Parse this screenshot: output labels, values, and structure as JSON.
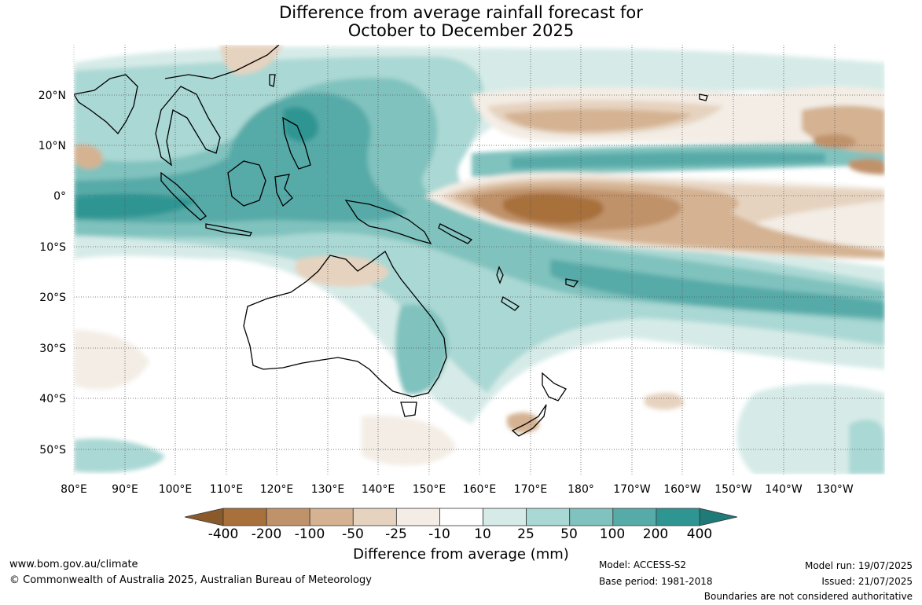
{
  "title_line1": "Difference from average rainfall forecast for",
  "title_line2": "October to December 2025",
  "map": {
    "lat_labels": [
      "20°N",
      "10°N",
      "0°",
      "10°S",
      "20°S",
      "30°S",
      "40°S",
      "50°S"
    ],
    "lon_labels": [
      "80°E",
      "90°E",
      "100°E",
      "110°E",
      "120°E",
      "130°E",
      "140°E",
      "150°E",
      "160°E",
      "170°E",
      "180°",
      "170°W",
      "160°W",
      "150°W",
      "140°W",
      "130°W"
    ],
    "palette": {
      "dry_400": "#a8703a",
      "dry_200": "#c0926a",
      "dry_100": "#d4b292",
      "dry_50": "#e6d3bf",
      "dry_25": "#f3ede5",
      "neutral": "#ffffff",
      "wet_25": "#d6ebe8",
      "wet_50": "#aad8d4",
      "wet_100": "#80c2be",
      "wet_200": "#56aaa8",
      "wet_400": "#2e9592",
      "land_outline": "#000000",
      "grid": "#555555"
    }
  },
  "colorbar": {
    "ticks": [
      "-400",
      "-200",
      "-100",
      "-50",
      "-25",
      "-10",
      "10",
      "25",
      "50",
      "100",
      "200",
      "400"
    ],
    "colors": [
      "#a8703a",
      "#c0926a",
      "#d4b292",
      "#e6d3bf",
      "#f3ede5",
      "#ffffff",
      "#d6ebe8",
      "#aad8d4",
      "#80c2be",
      "#56aaa8",
      "#2e9592"
    ],
    "title": "Difference from average (mm)"
  },
  "footer": {
    "website": "www.bom.gov.au/climate",
    "copyright": "© Commonwealth of Australia 2025, Australian Bureau of Meteorology",
    "model": "Model: ACCESS-S2",
    "base_period": "Base period: 1981-2018",
    "model_run": "Model run: 19/07/2025",
    "issued": "Issued: 21/07/2025",
    "disclaimer": "Boundaries are not considered authoritative"
  }
}
